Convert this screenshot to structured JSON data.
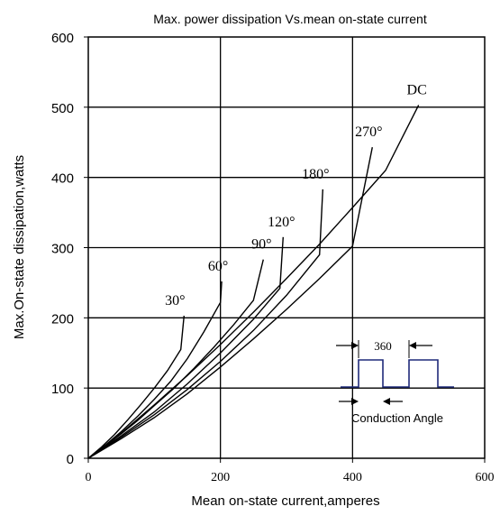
{
  "chart_data": {
    "type": "line",
    "title": "Max. power dissipation Vs.mean on-state current",
    "xlabel": "Mean on-state current,amperes",
    "ylabel": "Max.On-state dissipation,watts",
    "xlim": [
      0,
      600
    ],
    "ylim": [
      0,
      600
    ],
    "x_ticks": [
      0,
      200,
      400,
      600
    ],
    "y_ticks": [
      0,
      100,
      200,
      300,
      400,
      500,
      600
    ],
    "grid": true,
    "series": [
      {
        "name": "30°",
        "points": [
          [
            0,
            0
          ],
          [
            20,
            16
          ],
          [
            40,
            34
          ],
          [
            60,
            55
          ],
          [
            80,
            77
          ],
          [
            100,
            100
          ],
          [
            120,
            125
          ],
          [
            140,
            155
          ],
          [
            145,
            203
          ]
        ]
      },
      {
        "name": "60°",
        "points": [
          [
            0,
            0
          ],
          [
            25,
            18
          ],
          [
            50,
            38
          ],
          [
            75,
            60
          ],
          [
            100,
            84
          ],
          [
            125,
            110
          ],
          [
            150,
            142
          ],
          [
            175,
            180
          ],
          [
            200,
            222
          ],
          [
            202,
            252
          ]
        ]
      },
      {
        "name": "90°",
        "points": [
          [
            0,
            0
          ],
          [
            25,
            17
          ],
          [
            50,
            35
          ],
          [
            75,
            54
          ],
          [
            100,
            75
          ],
          [
            130,
            100
          ],
          [
            160,
            128
          ],
          [
            190,
            158
          ],
          [
            220,
            190
          ],
          [
            250,
            225
          ],
          [
            265,
            283
          ]
        ]
      },
      {
        "name": "120°",
        "points": [
          [
            0,
            0
          ],
          [
            50,
            32
          ],
          [
            100,
            66
          ],
          [
            150,
            106
          ],
          [
            200,
            150
          ],
          [
            250,
            198
          ],
          [
            290,
            242
          ],
          [
            295,
            315
          ]
        ]
      },
      {
        "name": "180°",
        "points": [
          [
            0,
            0
          ],
          [
            50,
            30
          ],
          [
            100,
            62
          ],
          [
            150,
            98
          ],
          [
            200,
            138
          ],
          [
            250,
            182
          ],
          [
            300,
            232
          ],
          [
            350,
            290
          ],
          [
            355,
            383
          ]
        ]
      },
      {
        "name": "270°",
        "points": [
          [
            0,
            0
          ],
          [
            50,
            28
          ],
          [
            100,
            58
          ],
          [
            150,
            92
          ],
          [
            200,
            130
          ],
          [
            250,
            170
          ],
          [
            300,
            212
          ],
          [
            350,
            256
          ],
          [
            400,
            302
          ],
          [
            430,
            443
          ]
        ]
      },
      {
        "name": "DC",
        "points": [
          [
            0,
            0
          ],
          [
            50,
            36
          ],
          [
            100,
            76
          ],
          [
            150,
            118
          ],
          [
            200,
            162
          ],
          [
            250,
            208
          ],
          [
            300,
            256
          ],
          [
            350,
            305
          ],
          [
            400,
            357
          ],
          [
            450,
            410
          ],
          [
            500,
            503
          ]
        ]
      }
    ],
    "inset": {
      "label_360": "360",
      "label_conduction": "Conduction  Angle",
      "waveform_color": "#1f2a7a"
    }
  }
}
